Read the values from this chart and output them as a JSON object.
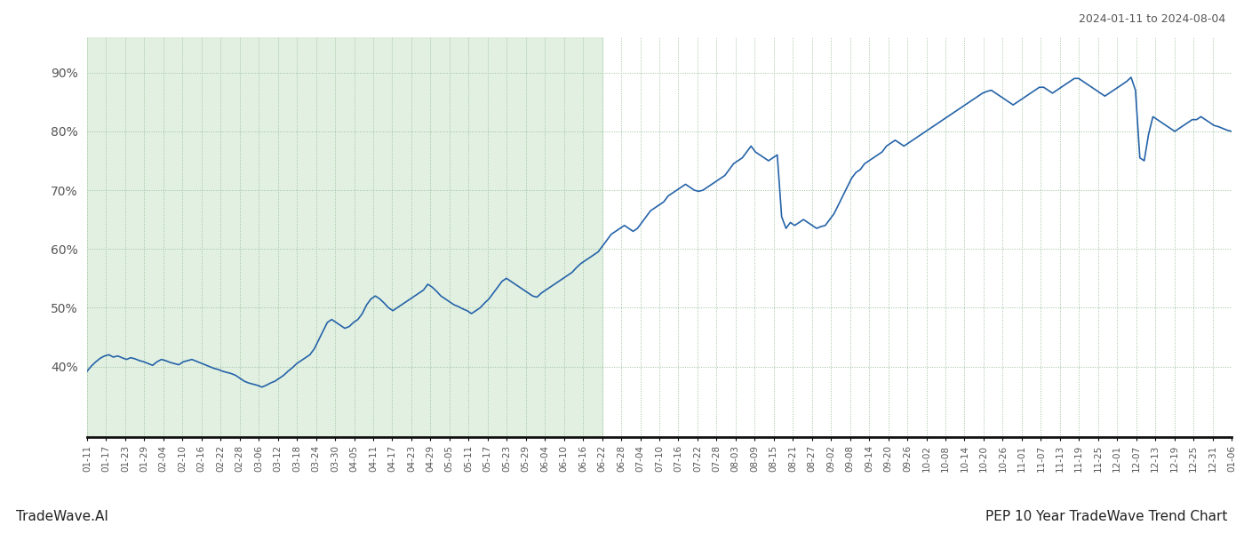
{
  "title_top_right": "2024-01-11 to 2024-08-04",
  "footer_left": "TradeWave.AI",
  "footer_right": "PEP 10 Year TradeWave Trend Chart",
  "line_color": "#2563a8",
  "line_width": 1.2,
  "bg_color": "#ffffff",
  "shade_color": "#d6ead6",
  "shade_alpha": 0.7,
  "grid_color": "#9dbf9d",
  "grid_style": ":",
  "ylim": [
    28,
    96
  ],
  "yticks": [
    40,
    50,
    60,
    70,
    80,
    90
  ],
  "shade_end_label": "06-22",
  "x_labels": [
    "01-11",
    "01-17",
    "01-23",
    "01-29",
    "02-04",
    "02-10",
    "02-16",
    "02-22",
    "02-28",
    "03-06",
    "03-12",
    "03-18",
    "03-24",
    "03-30",
    "04-05",
    "04-11",
    "04-17",
    "04-23",
    "04-29",
    "05-05",
    "05-11",
    "05-17",
    "05-23",
    "05-29",
    "06-04",
    "06-10",
    "06-16",
    "06-22",
    "06-28",
    "07-04",
    "07-10",
    "07-16",
    "07-22",
    "07-28",
    "08-03",
    "08-09",
    "08-15",
    "08-21",
    "08-27",
    "09-02",
    "09-08",
    "09-14",
    "09-20",
    "09-26",
    "10-02",
    "10-08",
    "10-14",
    "10-20",
    "10-26",
    "11-01",
    "11-07",
    "11-13",
    "11-19",
    "11-25",
    "12-01",
    "12-07",
    "12-13",
    "12-19",
    "12-25",
    "12-31",
    "01-06"
  ],
  "y_values": [
    39.2,
    40.1,
    40.8,
    41.4,
    41.8,
    42.0,
    41.6,
    41.8,
    41.5,
    41.2,
    41.5,
    41.3,
    41.0,
    40.8,
    40.5,
    40.2,
    40.8,
    41.2,
    41.0,
    40.7,
    40.5,
    40.3,
    40.8,
    41.0,
    41.2,
    40.9,
    40.6,
    40.3,
    40.0,
    39.7,
    39.5,
    39.2,
    39.0,
    38.8,
    38.5,
    38.0,
    37.5,
    37.2,
    37.0,
    36.8,
    36.5,
    36.8,
    37.2,
    37.5,
    38.0,
    38.5,
    39.2,
    39.8,
    40.5,
    41.0,
    41.5,
    42.0,
    43.0,
    44.5,
    46.0,
    47.5,
    48.0,
    47.5,
    47.0,
    46.5,
    46.8,
    47.5,
    48.0,
    49.0,
    50.5,
    51.5,
    52.0,
    51.5,
    50.8,
    50.0,
    49.5,
    50.0,
    50.5,
    51.0,
    51.5,
    52.0,
    52.5,
    53.0,
    54.0,
    53.5,
    52.8,
    52.0,
    51.5,
    51.0,
    50.5,
    50.2,
    49.8,
    49.5,
    49.0,
    49.5,
    50.0,
    50.8,
    51.5,
    52.5,
    53.5,
    54.5,
    55.0,
    54.5,
    54.0,
    53.5,
    53.0,
    52.5,
    52.0,
    51.8,
    52.5,
    53.0,
    53.5,
    54.0,
    54.5,
    55.0,
    55.5,
    56.0,
    56.8,
    57.5,
    58.0,
    58.5,
    59.0,
    59.5,
    60.5,
    61.5,
    62.5,
    63.0,
    63.5,
    64.0,
    63.5,
    63.0,
    63.5,
    64.5,
    65.5,
    66.5,
    67.0,
    67.5,
    68.0,
    69.0,
    69.5,
    70.0,
    70.5,
    71.0,
    70.5,
    70.0,
    69.8,
    70.0,
    70.5,
    71.0,
    71.5,
    72.0,
    72.5,
    73.5,
    74.5,
    75.0,
    75.5,
    76.5,
    77.5,
    76.5,
    76.0,
    75.5,
    75.0,
    75.5,
    76.0,
    65.5,
    63.5,
    64.5,
    64.0,
    64.5,
    65.0,
    64.5,
    64.0,
    63.5,
    63.8,
    64.0,
    65.0,
    66.0,
    67.5,
    69.0,
    70.5,
    72.0,
    73.0,
    73.5,
    74.5,
    75.0,
    75.5,
    76.0,
    76.5,
    77.5,
    78.0,
    78.5,
    78.0,
    77.5,
    78.0,
    78.5,
    79.0,
    79.5,
    80.0,
    80.5,
    81.0,
    81.5,
    82.0,
    82.5,
    83.0,
    83.5,
    84.0,
    84.5,
    85.0,
    85.5,
    86.0,
    86.5,
    86.8,
    87.0,
    86.5,
    86.0,
    85.5,
    85.0,
    84.5,
    85.0,
    85.5,
    86.0,
    86.5,
    87.0,
    87.5,
    87.5,
    87.0,
    86.5,
    87.0,
    87.5,
    88.0,
    88.5,
    89.0,
    89.0,
    88.5,
    88.0,
    87.5,
    87.0,
    86.5,
    86.0,
    86.5,
    87.0,
    87.5,
    88.0,
    88.5,
    89.2,
    87.0,
    75.5,
    75.0,
    79.5,
    82.5,
    82.0,
    81.5,
    81.0,
    80.5,
    80.0,
    80.5,
    81.0,
    81.5,
    82.0,
    82.0,
    82.5,
    82.0,
    81.5,
    81.0,
    80.8,
    80.5,
    80.2,
    80.0
  ]
}
